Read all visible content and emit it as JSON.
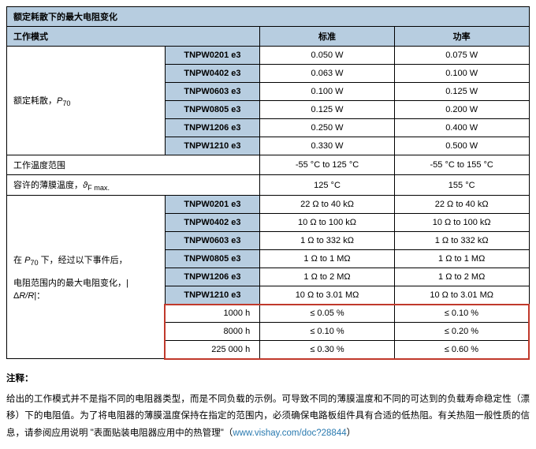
{
  "table": {
    "title": "额定耗散下的最大电阻变化",
    "header": {
      "mode": "工作模式",
      "std": "标准",
      "power": "功率"
    },
    "dissipation_label_html": "额定耗散，<span class='italic'>P</span><sub>70</sub>",
    "dissipation_rows": [
      {
        "model": "TNPW0201 e3",
        "std": "0.050 W",
        "power": "0.075 W"
      },
      {
        "model": "TNPW0402 e3",
        "std": "0.063 W",
        "power": "0.100 W"
      },
      {
        "model": "TNPW0603 e3",
        "std": "0.100 W",
        "power": "0.125 W"
      },
      {
        "model": "TNPW0805 e3",
        "std": "0.125 W",
        "power": "0.200 W"
      },
      {
        "model": "TNPW1206 e3",
        "std": "0.250 W",
        "power": "0.400 W"
      },
      {
        "model": "TNPW1210 e3",
        "std": "0.330 W",
        "power": "0.500 W"
      }
    ],
    "temp_range_label": "工作温度范围",
    "temp_range_std": "-55 °C to 125 °C",
    "temp_range_power": "-55 °C to 155 °C",
    "film_temp_label_html": "容许的薄膜温度，<span class='italic'>ϑ</span><sub>F max.</sub>",
    "film_temp_std": "125 °C",
    "film_temp_power": "155 °C",
    "drift_label_html": "在 <span class='italic'>P</span><sub>70</sub> 下，经过以下事件后，<br><br>电阻范围内的最大电阻变化，|Δ<span class='italic'>R/R</span>|：",
    "drift_rows": [
      {
        "model": "TNPW0201 e3",
        "std": "22 Ω to 40 kΩ",
        "power": "22 Ω to 40 kΩ"
      },
      {
        "model": "TNPW0402 e3",
        "std": "10 Ω to 100 kΩ",
        "power": "10 Ω to 100 kΩ"
      },
      {
        "model": "TNPW0603 e3",
        "std": "1 Ω to 332 kΩ",
        "power": "1 Ω to 332 kΩ"
      },
      {
        "model": "TNPW0805 e3",
        "std": "1 Ω to 1 MΩ",
        "power": "1 Ω to 1 MΩ"
      },
      {
        "model": "TNPW1206 e3",
        "std": "1 Ω to 2 MΩ",
        "power": "1 Ω to 2 MΩ"
      },
      {
        "model": "TNPW1210 e3",
        "std": "10 Ω to 3.01 MΩ",
        "power": "10 Ω to 3.01 MΩ"
      }
    ],
    "life_rows": [
      {
        "hours": "1000 h",
        "std": "≤ 0.05 %",
        "power": "≤ 0.10 %"
      },
      {
        "hours": "8000 h",
        "std": "≤ 0.10 %",
        "power": "≤ 0.20 %"
      },
      {
        "hours": "225 000 h",
        "std": "≤ 0.30 %",
        "power": "≤ 0.60 %"
      }
    ]
  },
  "notes": {
    "title": "注释：",
    "body_pre": "给出的工作模式并不是指不同的电阻器类型，而是不同负载的示例。可导致不同的薄膜温度和不同的可达到的负载寿命稳定性（漂移）下的电阻值。为了将电阻器的薄膜温度保持在指定的范围内，必须确保电路板组件具有合适的低热阻。有关热阻一般性质的信息，请参阅应用说明 \"表面贴装电阻器应用中的热管理\"（",
    "link_text": "www.vishay.com/doc?28844",
    "body_post": "）"
  }
}
